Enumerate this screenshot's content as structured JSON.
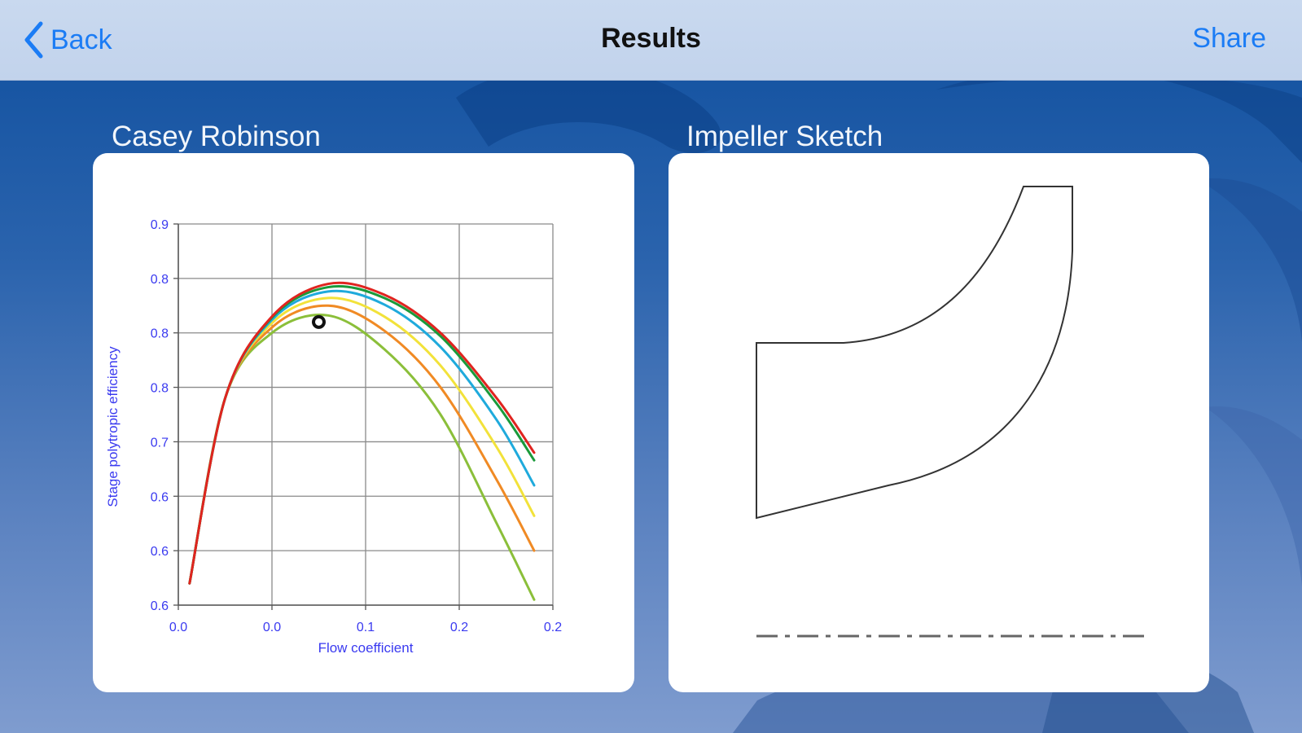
{
  "nav": {
    "back_label": "Back",
    "title": "Results",
    "share_label": "Share"
  },
  "chart_section": {
    "title": "Casey Robinson"
  },
  "sketch_section": {
    "title": "Impeller Sketch"
  },
  "colors": {
    "accent": "#1b7cf5",
    "axis_text": "#3a3af0",
    "series": [
      "#e0241f",
      "#1a9a3a",
      "#1faadc",
      "#f2e23a",
      "#f08a24",
      "#8bbf3a"
    ]
  },
  "chart_data": {
    "type": "line",
    "xlabel": "Flow coefficient",
    "ylabel": "Stage polytropic efficiency",
    "x_tick_labels": [
      "0.0",
      "0.0",
      "0.1",
      "0.2",
      "0.2"
    ],
    "y_tick_labels": [
      "0.9",
      "0.8",
      "0.8",
      "0.8",
      "0.7",
      "0.6",
      "0.6",
      "0.6"
    ],
    "xlim": [
      0.0,
      0.2
    ],
    "ylim": [
      0.55,
      0.9
    ],
    "grid": true,
    "series": [
      {
        "color": "#e0241f",
        "x": [
          0.006,
          0.025,
          0.05,
          0.08,
          0.11,
          0.14,
          0.17,
          0.19
        ],
        "y": [
          0.57,
          0.74,
          0.815,
          0.845,
          0.835,
          0.8,
          0.74,
          0.69
        ]
      },
      {
        "color": "#1a9a3a",
        "x": [
          0.006,
          0.025,
          0.05,
          0.08,
          0.11,
          0.14,
          0.17,
          0.19
        ],
        "y": [
          0.57,
          0.74,
          0.814,
          0.842,
          0.832,
          0.797,
          0.735,
          0.683
        ]
      },
      {
        "color": "#1faadc",
        "x": [
          0.006,
          0.025,
          0.05,
          0.08,
          0.11,
          0.14,
          0.17,
          0.19
        ],
        "y": [
          0.57,
          0.74,
          0.812,
          0.838,
          0.826,
          0.787,
          0.72,
          0.66
        ]
      },
      {
        "color": "#f2e23a",
        "x": [
          0.006,
          0.025,
          0.05,
          0.08,
          0.11,
          0.14,
          0.17,
          0.19
        ],
        "y": [
          0.57,
          0.74,
          0.809,
          0.832,
          0.815,
          0.77,
          0.695,
          0.632
        ]
      },
      {
        "color": "#f08a24",
        "x": [
          0.006,
          0.025,
          0.05,
          0.08,
          0.11,
          0.14,
          0.17,
          0.19
        ],
        "y": [
          0.57,
          0.74,
          0.805,
          0.825,
          0.802,
          0.75,
          0.665,
          0.6
        ]
      },
      {
        "color": "#8bbf3a",
        "x": [
          0.006,
          0.025,
          0.05,
          0.08,
          0.11,
          0.14,
          0.17,
          0.19
        ],
        "y": [
          0.57,
          0.74,
          0.8,
          0.816,
          0.785,
          0.725,
          0.625,
          0.555
        ]
      }
    ],
    "design_point": {
      "x": 0.075,
      "y": 0.81,
      "marker": "circle"
    }
  }
}
